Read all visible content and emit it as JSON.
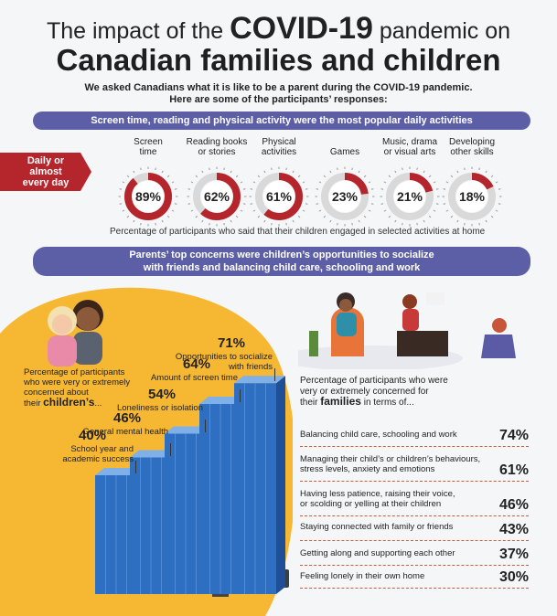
{
  "header": {
    "title_prefix": "The impact of the",
    "title_covid": "COVID-19",
    "title_suffix": "pandemic on",
    "title_line2": "Canadian families and children",
    "intro_line1": "We asked Canadians what it is like to be a parent during the COVID-19 pandemic.",
    "intro_line2": "Here are some of the participants’ responses:"
  },
  "section1": {
    "banner": "Screen time, reading and physical activity were the most popular daily activities",
    "tag_line1": "Daily or",
    "tag_line2": "almost",
    "tag_line3": "every day",
    "caption": "Percentage of participants who said that their children engaged in selected activities at home"
  },
  "section2": {
    "banner_line1": "Parents’ top concerns were children’s opportunities to socialize",
    "banner_line2": "with friends and balancing child care, schooling and work",
    "children_intro_1": "Percentage of participants",
    "children_intro_2": "who were very or extremely",
    "children_intro_3": "concerned about",
    "children_intro_4a": "their ",
    "children_intro_4b": "children’s",
    "children_intro_4c": "...",
    "families_intro_1": "Percentage of participants who were",
    "families_intro_2": "very or extremely concerned for",
    "families_intro_3a": "their ",
    "families_intro_3b": "families",
    "families_intro_3c": " in terms of..."
  },
  "colors": {
    "accent_red": "#b5252c",
    "banner_purple": "#5d5fa6",
    "orange": "#f6b733",
    "bar_blue": "#2e6fc2"
  },
  "chart_data": [
    {
      "type": "pie",
      "categories": [
        [
          "Screen",
          "time"
        ],
        [
          "Reading books",
          "or stories"
        ],
        [
          "Physical",
          "activities"
        ],
        [
          "Games"
        ],
        [
          "Music, drama",
          "or visual arts"
        ],
        [
          "Developing",
          "other skills"
        ]
      ],
      "values": [
        89,
        62,
        61,
        23,
        21,
        18
      ],
      "labels": [
        "89%",
        "62%",
        "61%",
        "23%",
        "21%",
        "18%"
      ]
    },
    {
      "type": "bar",
      "categories": [
        [
          "School year and",
          "academic success"
        ],
        [
          "General mental health"
        ],
        [
          "Loneliness or isolation"
        ],
        [
          "Amount of screen time"
        ],
        [
          "Opportunities to socialize",
          "with friends"
        ]
      ],
      "values": [
        40,
        46,
        54,
        64,
        71
      ],
      "labels": [
        "40%",
        "46%",
        "54%",
        "64%",
        "71%"
      ]
    },
    {
      "type": "table",
      "rows": [
        {
          "label": [
            "Balancing child care, schooling and work"
          ],
          "value": "74%"
        },
        {
          "label": [
            "Managing their child’s or children’s behaviours,",
            "stress levels, anxiety and emotions"
          ],
          "value": "61%"
        },
        {
          "label": [
            "Having less patience, raising their voice,",
            "or scolding or yelling at their children"
          ],
          "value": "46%"
        },
        {
          "label": [
            "Staying connected with family or friends"
          ],
          "value": "43%"
        },
        {
          "label": [
            "Getting along and supporting each other"
          ],
          "value": "37%"
        },
        {
          "label": [
            "Feeling lonely in their own home"
          ],
          "value": "30%"
        }
      ]
    }
  ]
}
